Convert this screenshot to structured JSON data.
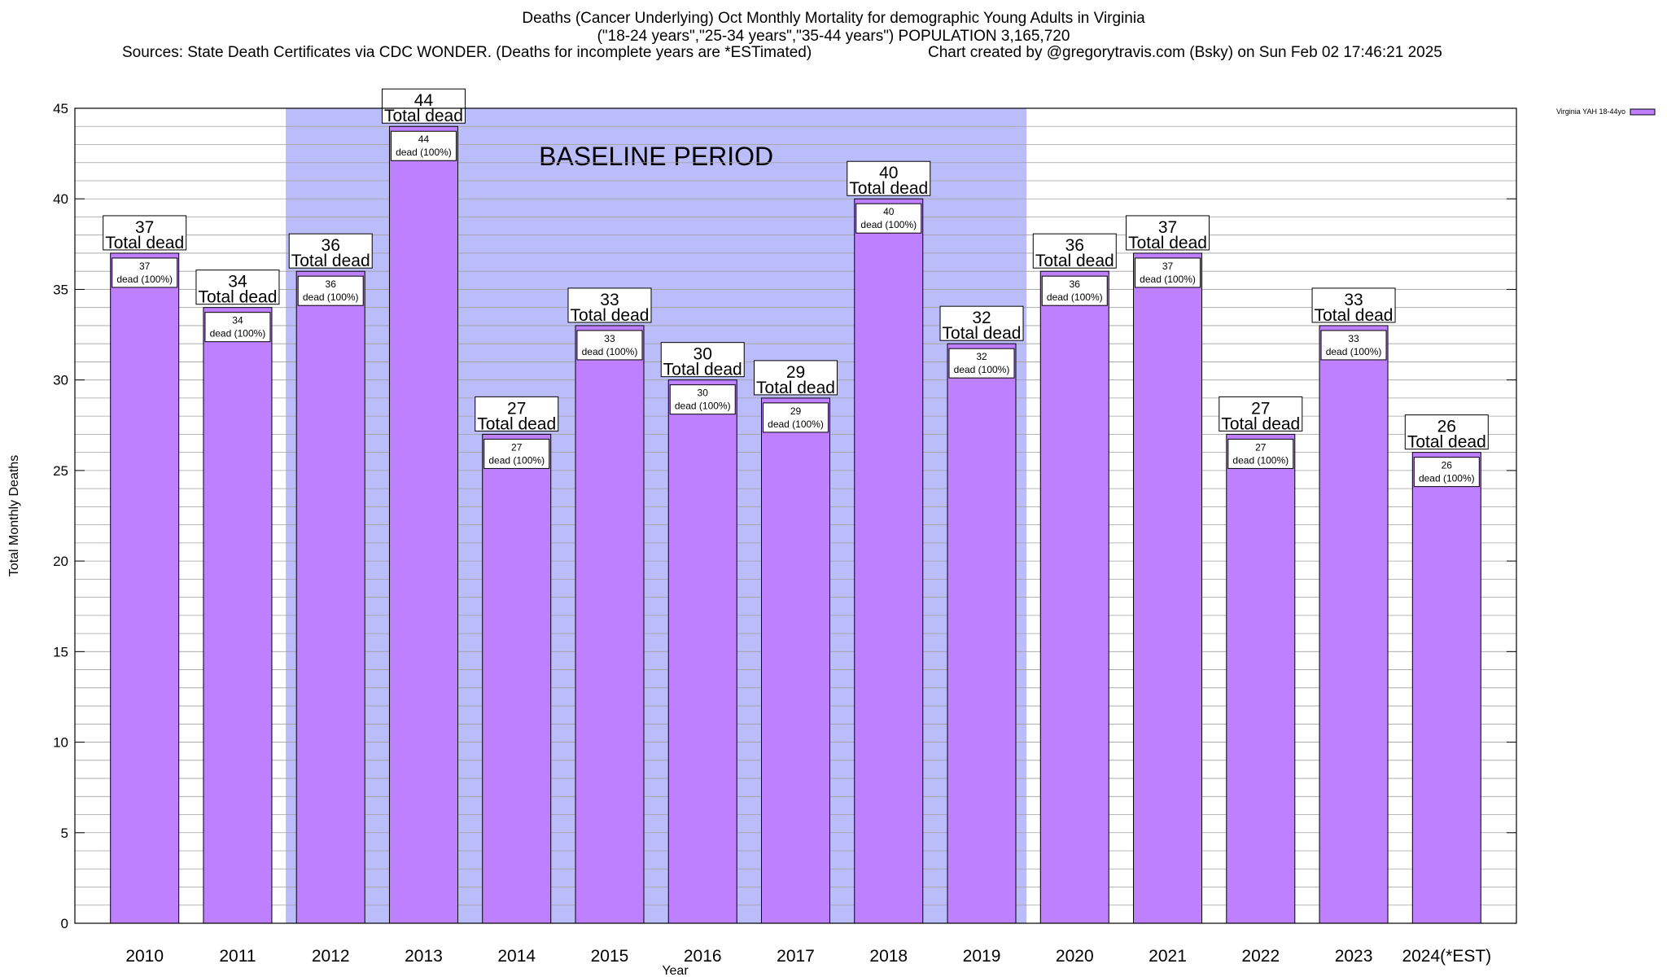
{
  "header": {
    "title_line1": "Deaths (Cancer Underlying) Oct Monthly Mortality for demographic Young Adults in Virginia",
    "title_line2": "(\"18-24 years\",\"25-34 years\",\"35-44 years\") POPULATION 3,165,720",
    "sources": "Sources: State Death Certificates via CDC WONDER. (Deaths for incomplete years are *ESTimated)",
    "credit": "Chart created by @gregorytravis.com (Bsky) on Sun Feb 02 17:46:21 2025"
  },
  "colors": {
    "bar_fill": "#bf80ff",
    "baseline_band": "#bbbdfb",
    "grid": "#a0a0a0",
    "axis": "#000000"
  },
  "chart_data": {
    "type": "bar",
    "categories": [
      "2010",
      "2011",
      "2012",
      "2013",
      "2014",
      "2015",
      "2016",
      "2017",
      "2018",
      "2019",
      "2020",
      "2021",
      "2022",
      "2023",
      "2024(*EST)"
    ],
    "series": [
      {
        "name": "Virginia YAH 18-44yo",
        "values": [
          37,
          34,
          36,
          44,
          27,
          33,
          30,
          29,
          40,
          32,
          36,
          37,
          27,
          33,
          26
        ]
      }
    ],
    "total_label_suffix": "Total dead",
    "inner_label_suffix": "dead (100%)",
    "xlabel": "Year",
    "ylabel": "Total Monthly Deaths",
    "ylim": [
      0,
      45
    ],
    "yticks": [
      0,
      5,
      10,
      15,
      20,
      25,
      30,
      35,
      40,
      45
    ],
    "minor_grid_step": 1,
    "baseline_period": {
      "label": "BASELINE PERIOD",
      "from_category": "2012",
      "to_category": "2019"
    },
    "legend_position": "top-right",
    "grid": true
  }
}
